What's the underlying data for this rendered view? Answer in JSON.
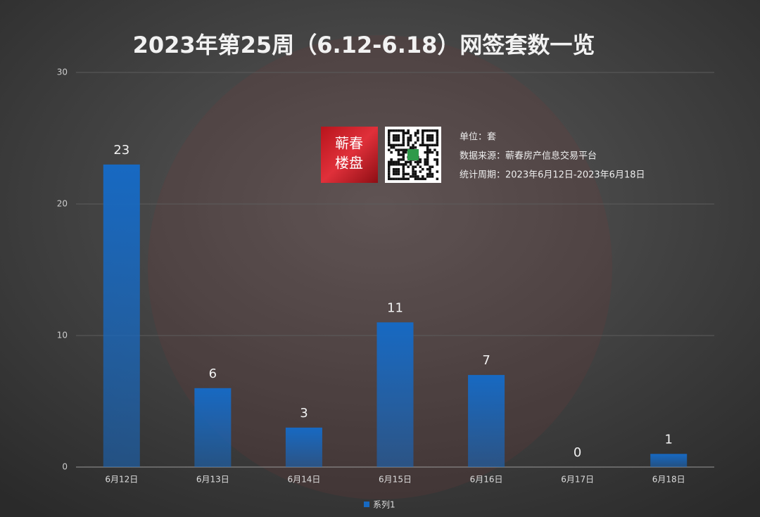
{
  "chart_data": {
    "type": "bar",
    "title": "2023年第25周（6.12-6.18）网签套数一览",
    "annotations": [
      "单位：套",
      "数据来源：蕲春房产信息交易平台",
      "统计周期：2023年6月12日-2023年6月18日"
    ],
    "logo_text": [
      "蕲春",
      "楼盘"
    ],
    "categories": [
      "6月12日",
      "6月13日",
      "6月14日",
      "6月15日",
      "6月16日",
      "6月17日",
      "6月18日"
    ],
    "series": [
      {
        "name": "系列1",
        "color": "#1769c2",
        "values": [
          23,
          6,
          3,
          11,
          7,
          0,
          1
        ]
      }
    ],
    "ylim": [
      0,
      30
    ],
    "yticks": [
      0,
      10,
      20,
      30
    ],
    "grid": true,
    "legend": "bottom"
  }
}
